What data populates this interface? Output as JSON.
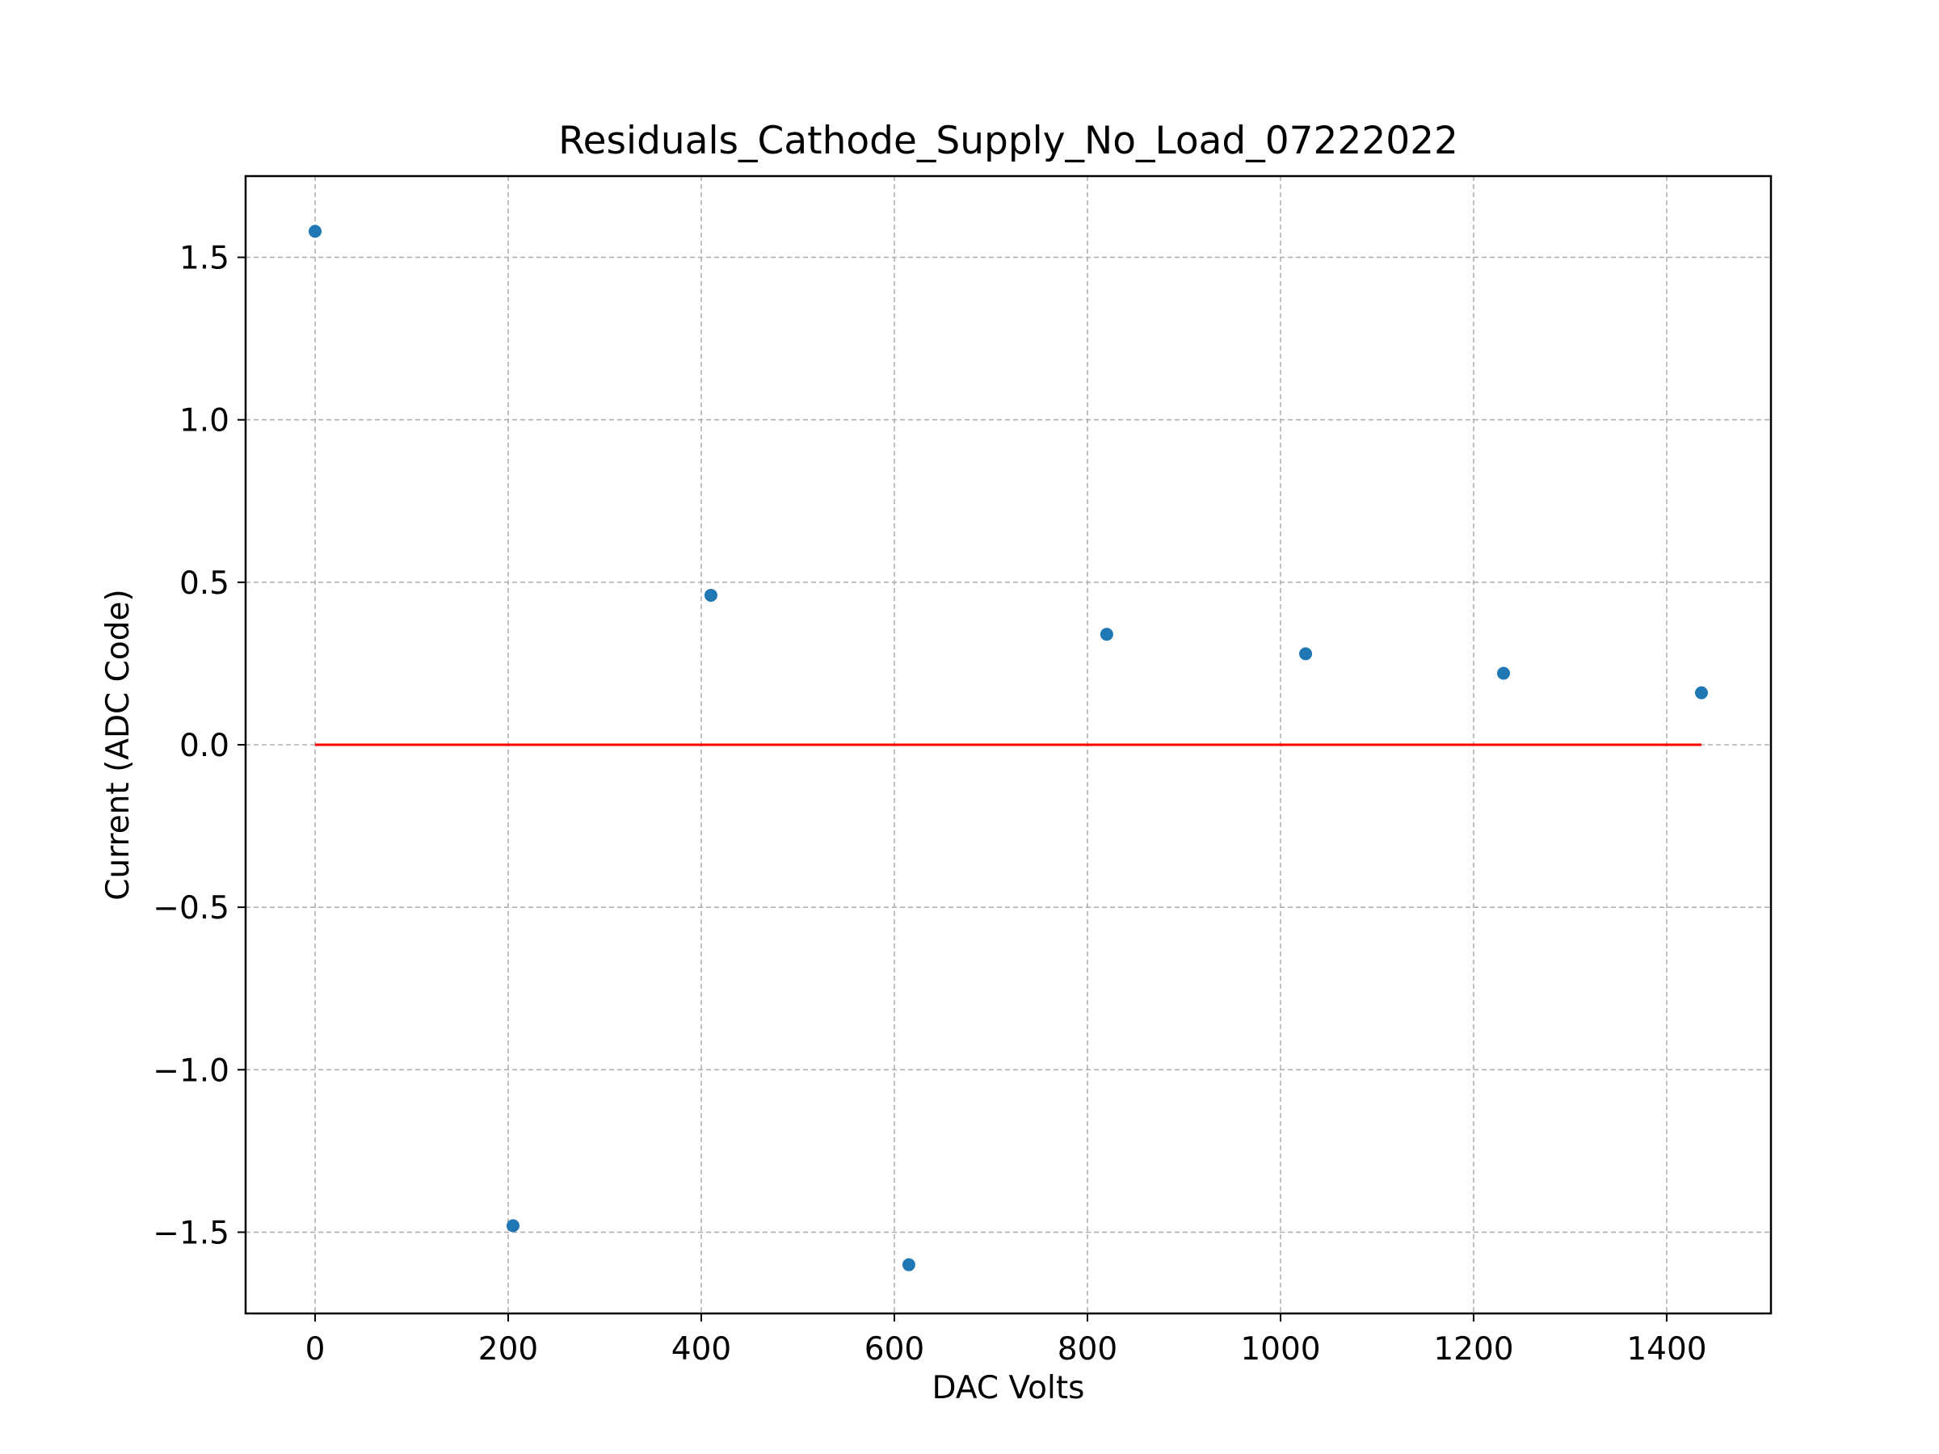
{
  "chart_data": {
    "type": "scatter",
    "title": "Residuals_Cathode_Supply_No_Load_07222022",
    "xlabel": "DAC Volts",
    "ylabel": "Current (ADC Code)",
    "xlim": [
      -72,
      1508
    ],
    "ylim": [
      -1.75,
      1.75
    ],
    "xticks": [
      0,
      200,
      400,
      600,
      800,
      1000,
      1200,
      1400
    ],
    "xtick_labels": [
      "0",
      "200",
      "400",
      "600",
      "800",
      "1000",
      "1200",
      "1400"
    ],
    "yticks": [
      -1.5,
      -1.0,
      -0.5,
      0.0,
      0.5,
      1.0,
      1.5
    ],
    "ytick_labels": [
      "−1.5",
      "−1.0",
      "−0.5",
      "0.0",
      "0.5",
      "1.0",
      "1.5"
    ],
    "grid": true,
    "series": [
      {
        "x": [
          0,
          205,
          410,
          615,
          820,
          1026,
          1231,
          1436
        ],
        "y": [
          1.58,
          -1.48,
          0.46,
          -1.6,
          0.34,
          0.28,
          0.22,
          0.16
        ],
        "color": "#1f77b4",
        "marker": "circle"
      }
    ],
    "reference_line": {
      "x": [
        0,
        1436
      ],
      "y": [
        0.0,
        0.0
      ],
      "color": "#ff0000"
    }
  }
}
